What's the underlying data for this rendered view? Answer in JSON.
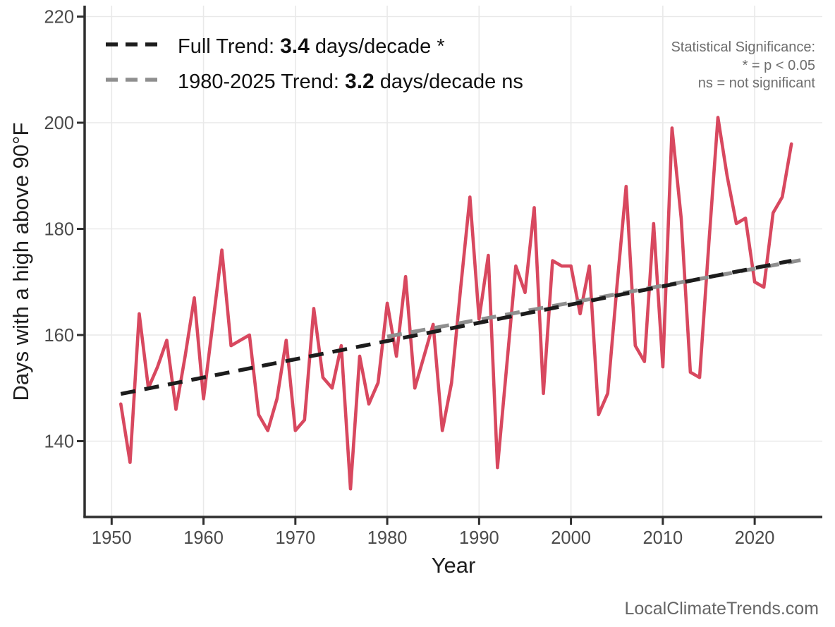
{
  "page": {
    "footer": "LocalClimateTrends.com"
  },
  "chart_data": {
    "type": "line",
    "title": "",
    "xlabel": "Year",
    "ylabel": "Days with a high above 90°F",
    "x_ticks": [
      1950,
      1960,
      1970,
      1980,
      1990,
      2000,
      2010,
      2020
    ],
    "y_ticks": [
      140,
      160,
      180,
      200,
      220
    ],
    "xlim": [
      1947,
      2027
    ],
    "ylim": [
      125,
      222
    ],
    "grid": true,
    "legend_position": "top-left",
    "series": [
      {
        "name": "days-above-90f-annual",
        "color": "#d8485f",
        "years": [
          1951,
          1952,
          1953,
          1954,
          1955,
          1956,
          1957,
          1958,
          1959,
          1960,
          1961,
          1962,
          1963,
          1964,
          1965,
          1966,
          1967,
          1968,
          1969,
          1970,
          1971,
          1972,
          1973,
          1974,
          1975,
          1976,
          1977,
          1978,
          1979,
          1980,
          1981,
          1982,
          1983,
          1984,
          1985,
          1986,
          1987,
          1988,
          1989,
          1990,
          1991,
          1992,
          1993,
          1994,
          1995,
          1996,
          1997,
          1998,
          1999,
          2000,
          2001,
          2002,
          2003,
          2004,
          2005,
          2006,
          2007,
          2008,
          2009,
          2010,
          2011,
          2012,
          2013,
          2014,
          2015,
          2016,
          2017,
          2018,
          2019,
          2020,
          2021,
          2022,
          2023,
          2024
        ],
        "values": [
          147,
          136,
          164,
          150,
          154,
          159,
          146,
          156,
          167,
          148,
          162,
          176,
          158,
          159,
          160,
          145,
          142,
          148,
          159,
          142,
          144,
          165,
          152,
          150,
          158,
          131,
          156,
          147,
          151,
          166,
          156,
          171,
          150,
          156,
          162,
          142,
          151,
          169,
          186,
          163,
          175,
          135,
          154,
          173,
          168,
          184,
          149,
          174,
          173,
          173,
          164,
          173,
          145,
          149,
          169,
          188,
          158,
          155,
          181,
          154,
          199,
          182,
          153,
          152,
          177,
          201,
          190,
          181,
          182,
          170,
          169,
          183,
          186,
          196
        ]
      }
    ],
    "trends": [
      {
        "name": "full-trend",
        "color": "#1c1c1c",
        "label_prefix": "Full Trend: ",
        "label_value": "3.4",
        "label_suffix": " days/decade *",
        "x1": 1951,
        "y1": 148.9,
        "x2": 2024,
        "y2": 174.0
      },
      {
        "name": "recent-trend",
        "color": "#8f8f8f",
        "label_prefix": "1980-2025 Trend: ",
        "label_value": "3.2",
        "label_suffix": " days/decade ns",
        "x1": 1980,
        "y1": 159.7,
        "x2": 2025,
        "y2": 174.1
      }
    ],
    "annotation": {
      "lines": [
        "Statistical Significance:",
        "* = p < 0.05",
        "ns = not significant"
      ]
    }
  }
}
